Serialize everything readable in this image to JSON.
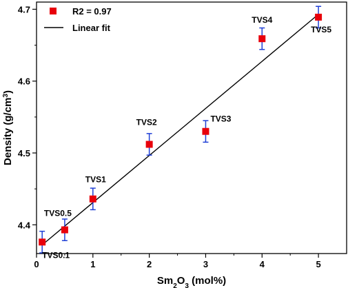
{
  "chart_data": {
    "type": "scatter",
    "x_title_parts": [
      {
        "text": "Sm",
        "shift": "base"
      },
      {
        "text": "2",
        "shift": "sub"
      },
      {
        "text": "O",
        "shift": "base"
      },
      {
        "text": "3",
        "shift": "sub"
      },
      {
        "text": " (mol%)",
        "shift": "base"
      }
    ],
    "y_title_parts": [
      {
        "text": "Density (g/cm",
        "shift": "base"
      },
      {
        "text": "3",
        "shift": "super"
      },
      {
        "text": ")",
        "shift": "base"
      }
    ],
    "xlim": [
      0,
      5.5
    ],
    "ylim": [
      4.36,
      4.71
    ],
    "x_ticks": [
      0,
      1,
      2,
      3,
      4,
      5
    ],
    "x_tick_labels": [
      "0",
      "1",
      "2",
      "3",
      "4",
      "5"
    ],
    "y_ticks": [
      4.4,
      4.5,
      4.6,
      4.7
    ],
    "y_tick_labels": [
      "4.4",
      "4.5",
      "4.6",
      "4.7"
    ],
    "grid": false,
    "legend_position": "top-left",
    "colors": {
      "marker": "#e8000b",
      "error_bar": "#1f3fd6",
      "fit_line": "#000000"
    },
    "series": [
      {
        "name": "R2 = 0.97",
        "marker": "square",
        "points": [
          {
            "label": "TVS0.1",
            "x": 0.1,
            "y": 4.376,
            "err": 0.015
          },
          {
            "label": "TVS0.5",
            "x": 0.5,
            "y": 4.393,
            "err": 0.015
          },
          {
            "label": "TVS1",
            "x": 1.0,
            "y": 4.436,
            "err": 0.015
          },
          {
            "label": "TVS2",
            "x": 2.0,
            "y": 4.512,
            "err": 0.015
          },
          {
            "label": "TVS3",
            "x": 3.0,
            "y": 4.53,
            "err": 0.015
          },
          {
            "label": "TVS4",
            "x": 4.0,
            "y": 4.659,
            "err": 0.015
          },
          {
            "label": "TVS5",
            "x": 5.0,
            "y": 4.689,
            "err": 0.015
          }
        ]
      },
      {
        "name": "Linear fit",
        "marker": "line",
        "line": [
          [
            0.1,
            4.372
          ],
          [
            5.0,
            4.693
          ]
        ]
      }
    ]
  }
}
